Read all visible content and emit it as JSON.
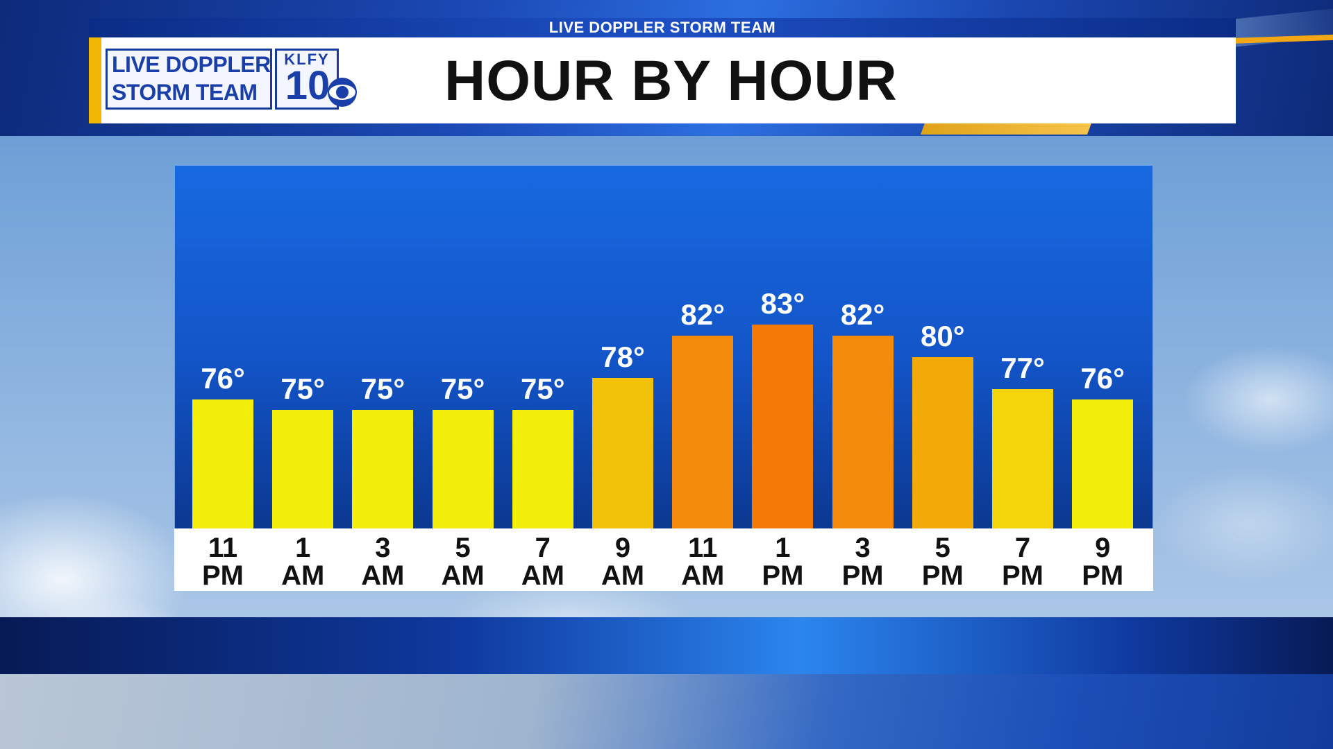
{
  "header": {
    "strip_text": "LIVE DOPPLER STORM TEAM",
    "title": "HOUR BY HOUR",
    "logo_line1": "LIVE DOPPLER",
    "logo_line2": "STORM TEAM",
    "logo_station": "KLFY",
    "logo_channel": "10"
  },
  "chart_data": {
    "type": "bar",
    "title": "HOUR BY HOUR",
    "xlabel": "",
    "ylabel": "",
    "unit": "°",
    "ylim": [
      60,
      90
    ],
    "grid": false,
    "categories": [
      {
        "hour": "11",
        "period": "PM"
      },
      {
        "hour": "1",
        "period": "AM"
      },
      {
        "hour": "3",
        "period": "AM"
      },
      {
        "hour": "5",
        "period": "AM"
      },
      {
        "hour": "7",
        "period": "AM"
      },
      {
        "hour": "9",
        "period": "AM"
      },
      {
        "hour": "11",
        "period": "AM"
      },
      {
        "hour": "1",
        "period": "PM"
      },
      {
        "hour": "3",
        "period": "PM"
      },
      {
        "hour": "5",
        "period": "PM"
      },
      {
        "hour": "7",
        "period": "PM"
      },
      {
        "hour": "9",
        "period": "PM"
      }
    ],
    "values": [
      76,
      75,
      75,
      75,
      75,
      78,
      82,
      83,
      82,
      80,
      77,
      76
    ],
    "value_labels": [
      "76°",
      "75°",
      "75°",
      "75°",
      "75°",
      "78°",
      "82°",
      "83°",
      "82°",
      "80°",
      "77°",
      "76°"
    ],
    "bar_colors": [
      "#f3ee0c",
      "#f3ee0c",
      "#f3ee0c",
      "#f3ee0c",
      "#f3ee0c",
      "#f2c20a",
      "#f48a0c",
      "#f47a08",
      "#f48a0c",
      "#f3ab0a",
      "#f2d50a",
      "#f3ee0c"
    ]
  }
}
